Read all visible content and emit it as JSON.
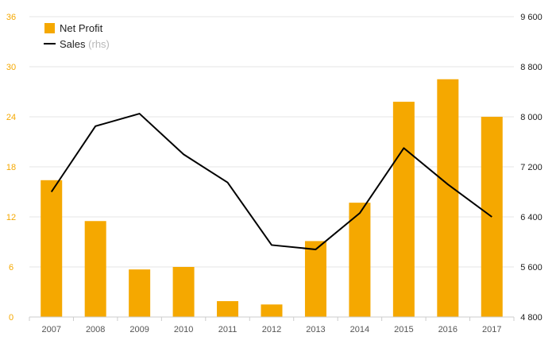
{
  "chart_data": {
    "type": "bar",
    "categories": [
      "2007",
      "2008",
      "2009",
      "2010",
      "2011",
      "2012",
      "2013",
      "2014",
      "2015",
      "2016",
      "2017"
    ],
    "series": [
      {
        "name": "Net Profit",
        "kind": "bar",
        "axis": "left",
        "values": [
          16.4,
          11.5,
          5.7,
          6.0,
          1.9,
          1.5,
          9.1,
          13.7,
          25.8,
          28.5,
          24.0
        ]
      },
      {
        "name": "Sales",
        "name_suffix": "(rhs)",
        "kind": "line",
        "axis": "right",
        "values": [
          6800,
          7850,
          8050,
          7400,
          6950,
          5950,
          5880,
          6460,
          7500,
          6920,
          6400
        ]
      }
    ],
    "y_left": {
      "ylim": [
        0,
        36
      ],
      "ticks": [
        "0",
        "6",
        "12",
        "18",
        "24",
        "30",
        "36"
      ]
    },
    "y_right": {
      "ylim": [
        4800,
        9600
      ],
      "ticks": [
        "4 800",
        "5 600",
        "6 400",
        "7 200",
        "8 000",
        "8 800",
        "9 600"
      ]
    },
    "title": "",
    "xlabel": "",
    "ylabel": "",
    "grid": true,
    "legend_position": "top-left",
    "colors": {
      "bar": "#f5a800",
      "line": "#000000",
      "left_ticks": "#f5a800",
      "right_ticks": "#222222"
    }
  }
}
